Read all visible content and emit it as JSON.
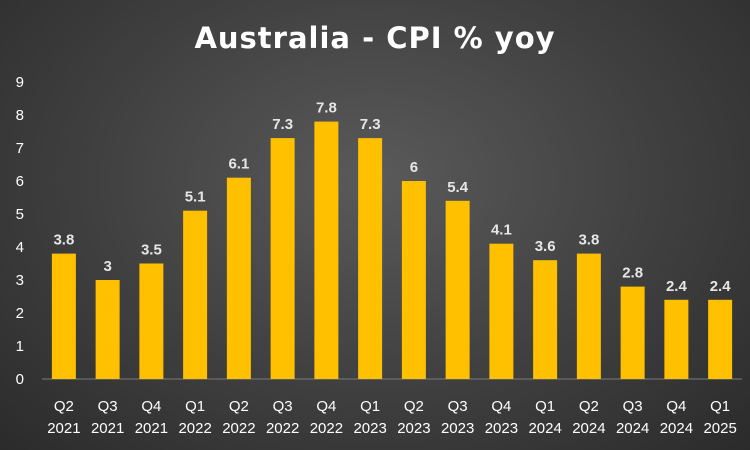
{
  "chart_data": {
    "type": "bar",
    "title": "Australia - CPI % yoy",
    "categories": [
      [
        "Q2",
        "2021"
      ],
      [
        "Q3",
        "2021"
      ],
      [
        "Q4",
        "2021"
      ],
      [
        "Q1",
        "2022"
      ],
      [
        "Q2",
        "2022"
      ],
      [
        "Q3",
        "2022"
      ],
      [
        "Q4",
        "2022"
      ],
      [
        "Q1",
        "2023"
      ],
      [
        "Q2",
        "2023"
      ],
      [
        "Q3",
        "2023"
      ],
      [
        "Q4",
        "2023"
      ],
      [
        "Q1",
        "2024"
      ],
      [
        "Q2",
        "2024"
      ],
      [
        "Q3",
        "2024"
      ],
      [
        "Q4",
        "2024"
      ],
      [
        "Q1",
        "2025"
      ]
    ],
    "values": [
      3.8,
      3,
      3.5,
      5.1,
      6.1,
      7.3,
      7.8,
      7.3,
      6,
      5.4,
      4.1,
      3.6,
      3.8,
      2.8,
      2.4,
      2.4
    ],
    "data_labels": [
      "3.8",
      "3",
      "3.5",
      "5.1",
      "6.1",
      "7.3",
      "7.8",
      "7.3",
      "6",
      "5.4",
      "4.1",
      "3.6",
      "3.8",
      "2.8",
      "2.4",
      "2.4"
    ],
    "yticks": [
      "0",
      "1",
      "2",
      "3",
      "4",
      "5",
      "6",
      "7",
      "8",
      "9"
    ],
    "ylim": [
      0,
      9
    ],
    "bar_color": "#ffc000",
    "grid": false,
    "legend": "none"
  }
}
